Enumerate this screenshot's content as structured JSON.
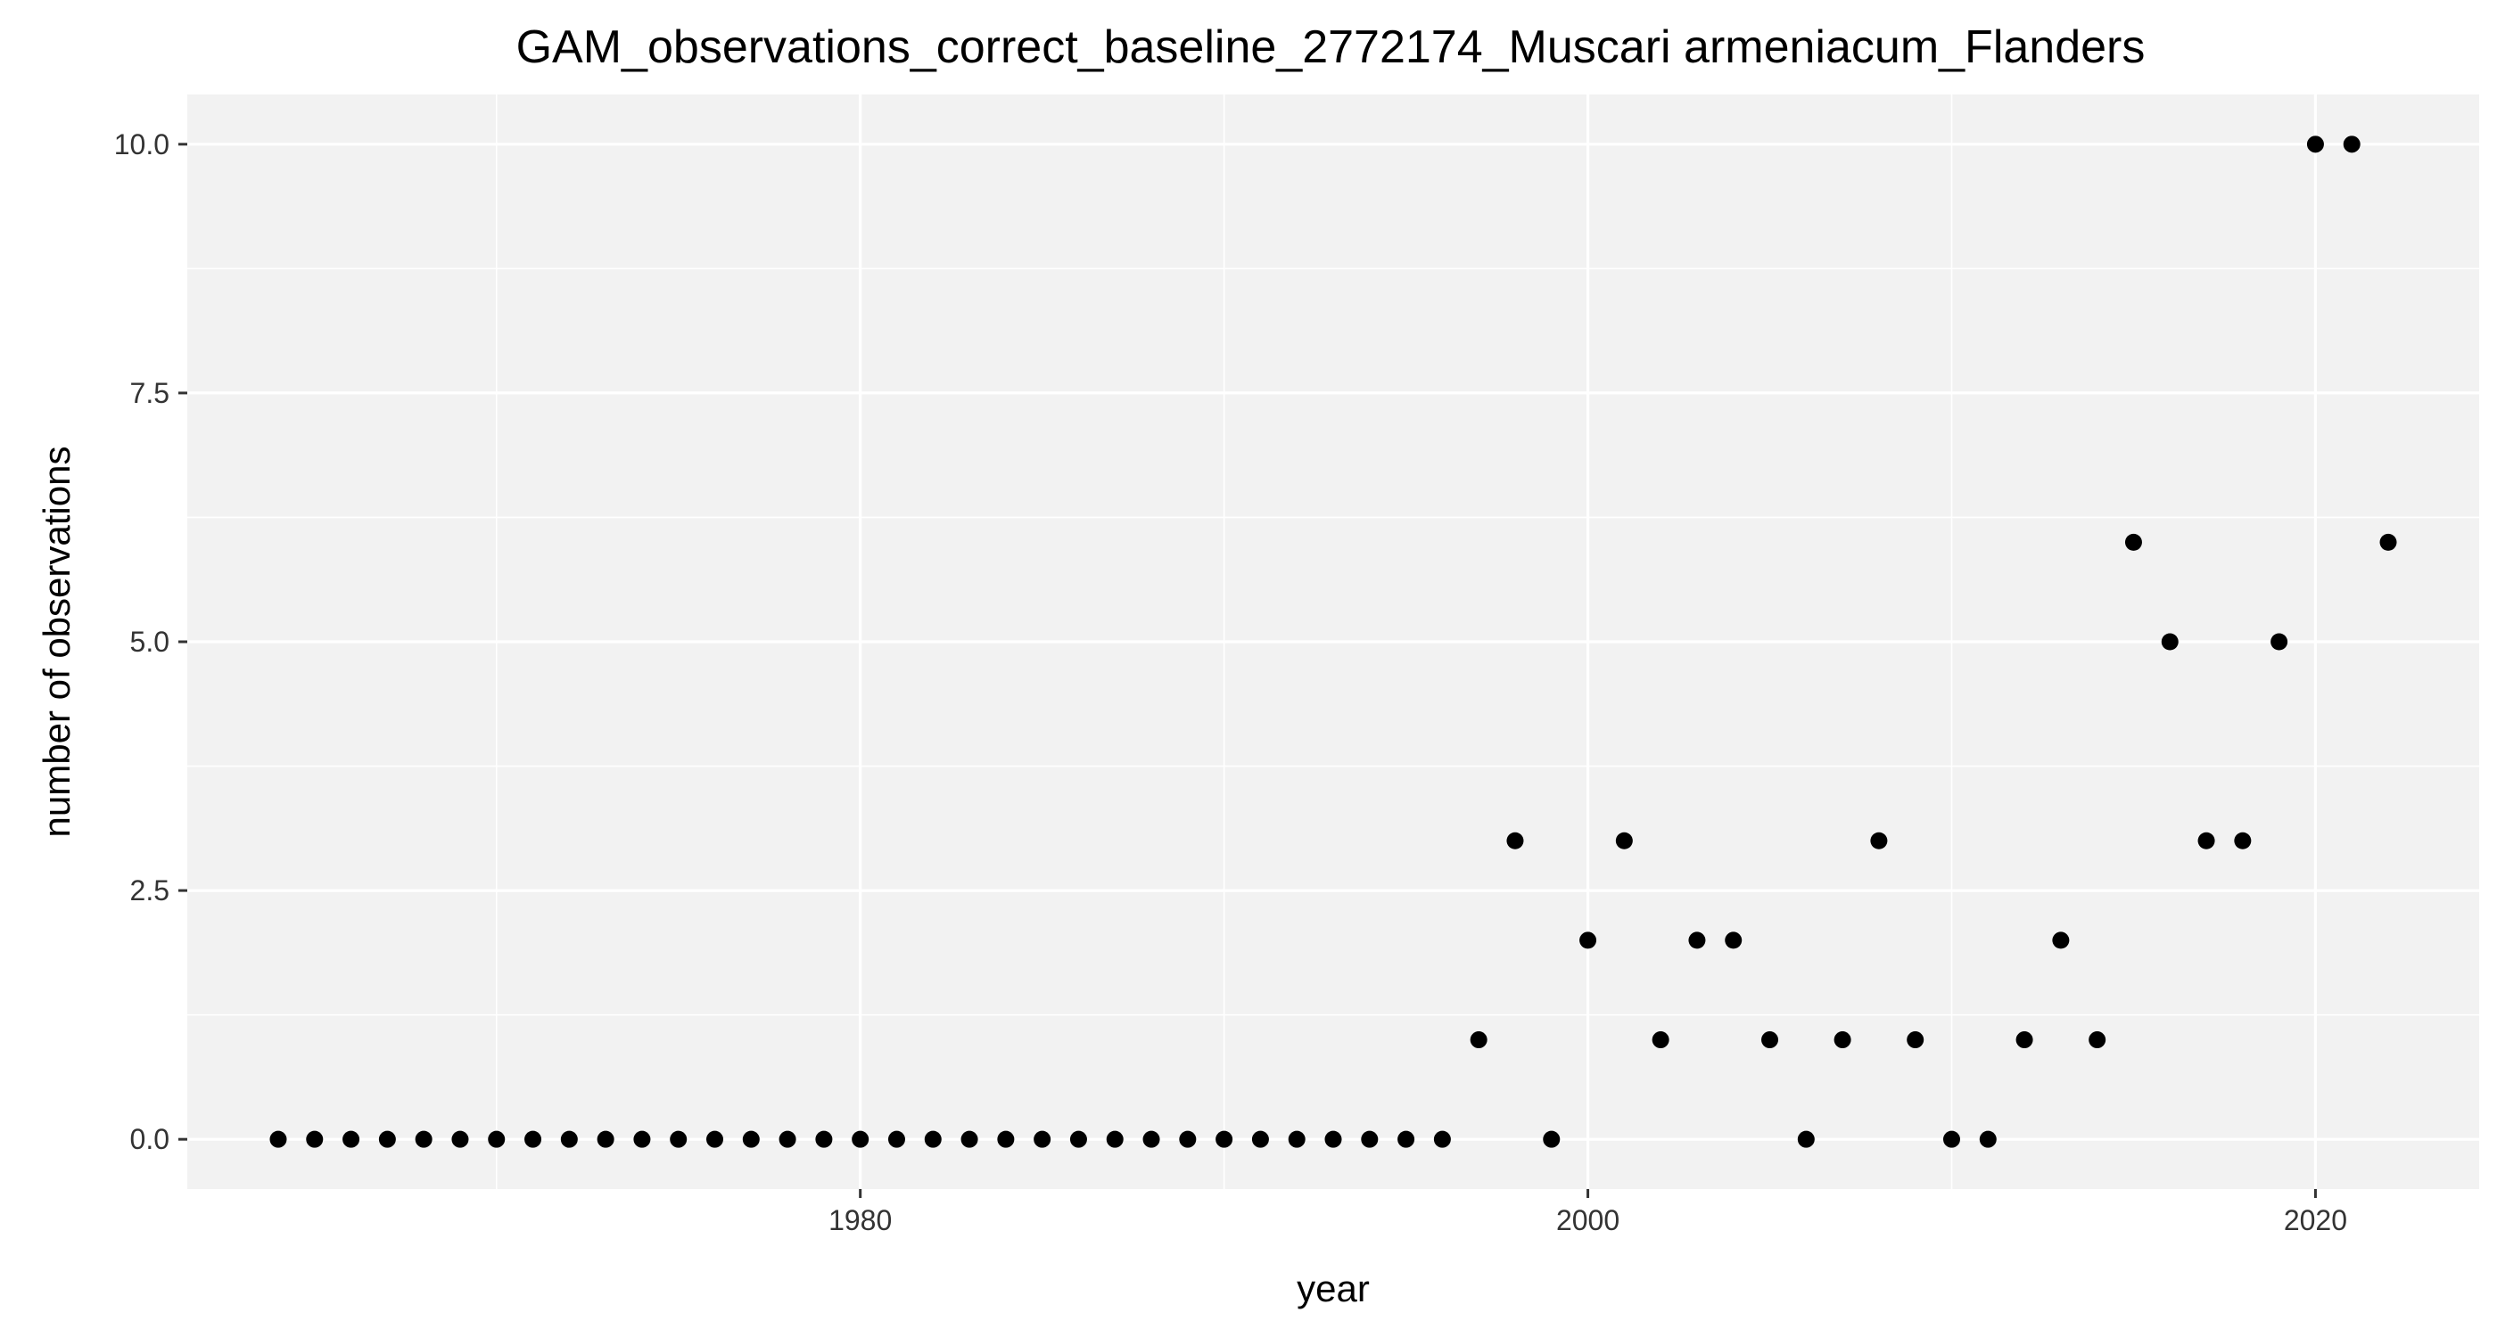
{
  "chart_data": {
    "type": "scatter",
    "title": "GAM_observations_correct_baseline_2772174_Muscari armeniacum_Flanders",
    "xlabel": "year",
    "ylabel": "number of observations",
    "xlim": [
      1961.5,
      2024.5
    ],
    "ylim": [
      -0.5,
      10.5
    ],
    "x_major_ticks": [
      1980,
      2000,
      2020
    ],
    "x_minor_ticks": [
      1970,
      1990,
      2010
    ],
    "y_major_ticks": [
      0.0,
      2.5,
      5.0,
      7.5,
      10.0
    ],
    "y_minor_ticks": [
      1.25,
      3.75,
      6.25,
      8.75
    ],
    "x_tick_labels": [
      "1980",
      "2000",
      "2020"
    ],
    "y_tick_labels": [
      "0.0",
      "2.5",
      "5.0",
      "7.5",
      "10.0"
    ],
    "grid": true,
    "panel_background": "#f2f2f2",
    "grid_color": "#ffffff",
    "point_color": "#000000",
    "series": [
      {
        "x": [
          1964,
          1965,
          1966,
          1967,
          1968,
          1969,
          1970,
          1971,
          1972,
          1973,
          1974,
          1975,
          1976,
          1977,
          1978,
          1979,
          1980,
          1981,
          1982,
          1983,
          1984,
          1985,
          1986,
          1987,
          1988,
          1989,
          1990,
          1991,
          1992,
          1993,
          1994,
          1995,
          1996,
          1997,
          1998,
          1999,
          2000,
          2001,
          2002,
          2003,
          2004,
          2005,
          2006,
          2007,
          2008,
          2009,
          2010,
          2011,
          2012,
          2013,
          2014,
          2015,
          2016,
          2017,
          2018,
          2019,
          2020,
          2021,
          2022
        ],
        "y": [
          0,
          0,
          0,
          0,
          0,
          0,
          0,
          0,
          0,
          0,
          0,
          0,
          0,
          0,
          0,
          0,
          0,
          0,
          0,
          0,
          0,
          0,
          0,
          0,
          0,
          0,
          0,
          0,
          0,
          0,
          0,
          0,
          0,
          1,
          3,
          0,
          2,
          3,
          1,
          2,
          2,
          1,
          0,
          1,
          3,
          1,
          0,
          0,
          1,
          2,
          1,
          6,
          5,
          3,
          3,
          5,
          10,
          10,
          6
        ]
      }
    ]
  }
}
